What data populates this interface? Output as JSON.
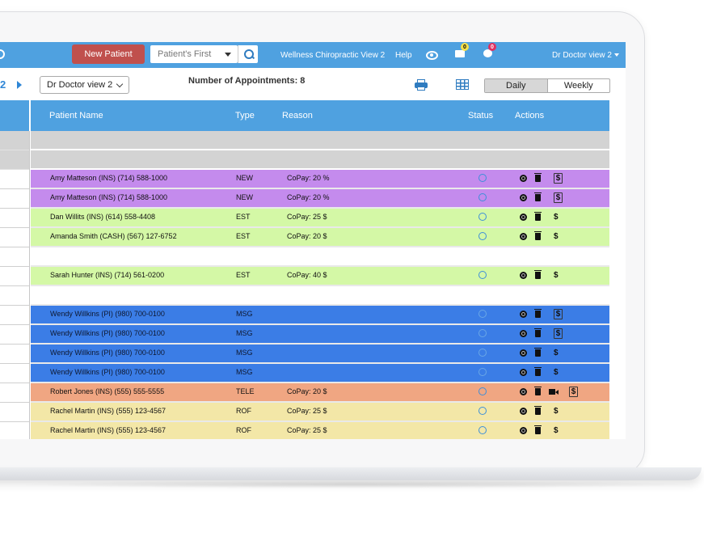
{
  "nav": {
    "new_patient": "New Patient",
    "search_placeholder": "Patient's First",
    "clinic": "Wellness Chiropractic View 2",
    "help": "Help",
    "mail_count": "0",
    "chat_count": "0",
    "doctor_menu": "Dr Doctor view 2"
  },
  "toolbar": {
    "date_fragment": "2",
    "doctor_select": "Dr Doctor view 2",
    "appointments_label": "Number of Appointments: 8",
    "view_daily": "Daily",
    "view_weekly": "Weekly"
  },
  "table": {
    "headers": {
      "patient": "Patient Name",
      "type": "Type",
      "reason": "Reason",
      "status": "Status",
      "actions": "Actions"
    },
    "rows": [
      {
        "kind": "gray",
        "name": "",
        "type": "",
        "reason": ""
      },
      {
        "kind": "gray",
        "name": "",
        "type": "",
        "reason": ""
      },
      {
        "kind": "purple",
        "name": "Amy Matteson (INS)  (714) 588-1000",
        "type": "NEW",
        "reason": "CoPay: 20 %",
        "dollar_boxed": true
      },
      {
        "kind": "purple",
        "name": "Amy Matteson (INS)  (714) 588-1000",
        "type": "NEW",
        "reason": "CoPay: 20 %",
        "dollar_boxed": true
      },
      {
        "kind": "green",
        "name": "Dan Willits (INS)  (614) 558-4408",
        "type": "EST",
        "reason": "CoPay: 25 $"
      },
      {
        "kind": "green",
        "name": "Amanda Smith (CASH)  (567) 127-6752",
        "type": "EST",
        "reason": "CoPay: 20 $"
      },
      {
        "kind": "empty",
        "name": "",
        "type": "",
        "reason": ""
      },
      {
        "kind": "green",
        "name": "Sarah Hunter (INS)  (714) 561-0200",
        "type": "EST",
        "reason": "CoPay: 40 $"
      },
      {
        "kind": "empty",
        "name": "",
        "type": "",
        "reason": ""
      },
      {
        "kind": "blue",
        "name": "Wendy Willkins (PI)  (980) 700-0100",
        "type": "MSG",
        "reason": "",
        "dollar_boxed": true
      },
      {
        "kind": "blue",
        "name": "Wendy Willkins (PI)  (980) 700-0100",
        "type": "MSG",
        "reason": "",
        "dollar_boxed": true
      },
      {
        "kind": "blue",
        "name": "Wendy Willkins (PI)  (980) 700-0100",
        "type": "MSG",
        "reason": ""
      },
      {
        "kind": "blue",
        "name": "Wendy Willkins (PI)  (980) 700-0100",
        "type": "MSG",
        "reason": ""
      },
      {
        "kind": "orange",
        "name": "Robert Jones (INS)  (555) 555-5555",
        "type": "TELE",
        "reason": "CoPay: 20 $",
        "video": true,
        "dollar_boxed": true
      },
      {
        "kind": "yellow",
        "name": "Rachel Martin (INS)  (555) 123-4567",
        "type": "ROF",
        "reason": "CoPay: 25 $"
      },
      {
        "kind": "yellow",
        "name": "Rachel Martin (INS)  (555) 123-4567",
        "type": "ROF",
        "reason": "CoPay: 25 $"
      }
    ]
  },
  "colors": {
    "nav": "#4fa1e0",
    "gray": "#d3d3d3",
    "purple": "#c48bed",
    "green": "#d4f8a6",
    "empty": "#ffffff",
    "blue": "#3b7de6",
    "orange": "#f0a682",
    "yellow": "#f3e7a7"
  }
}
